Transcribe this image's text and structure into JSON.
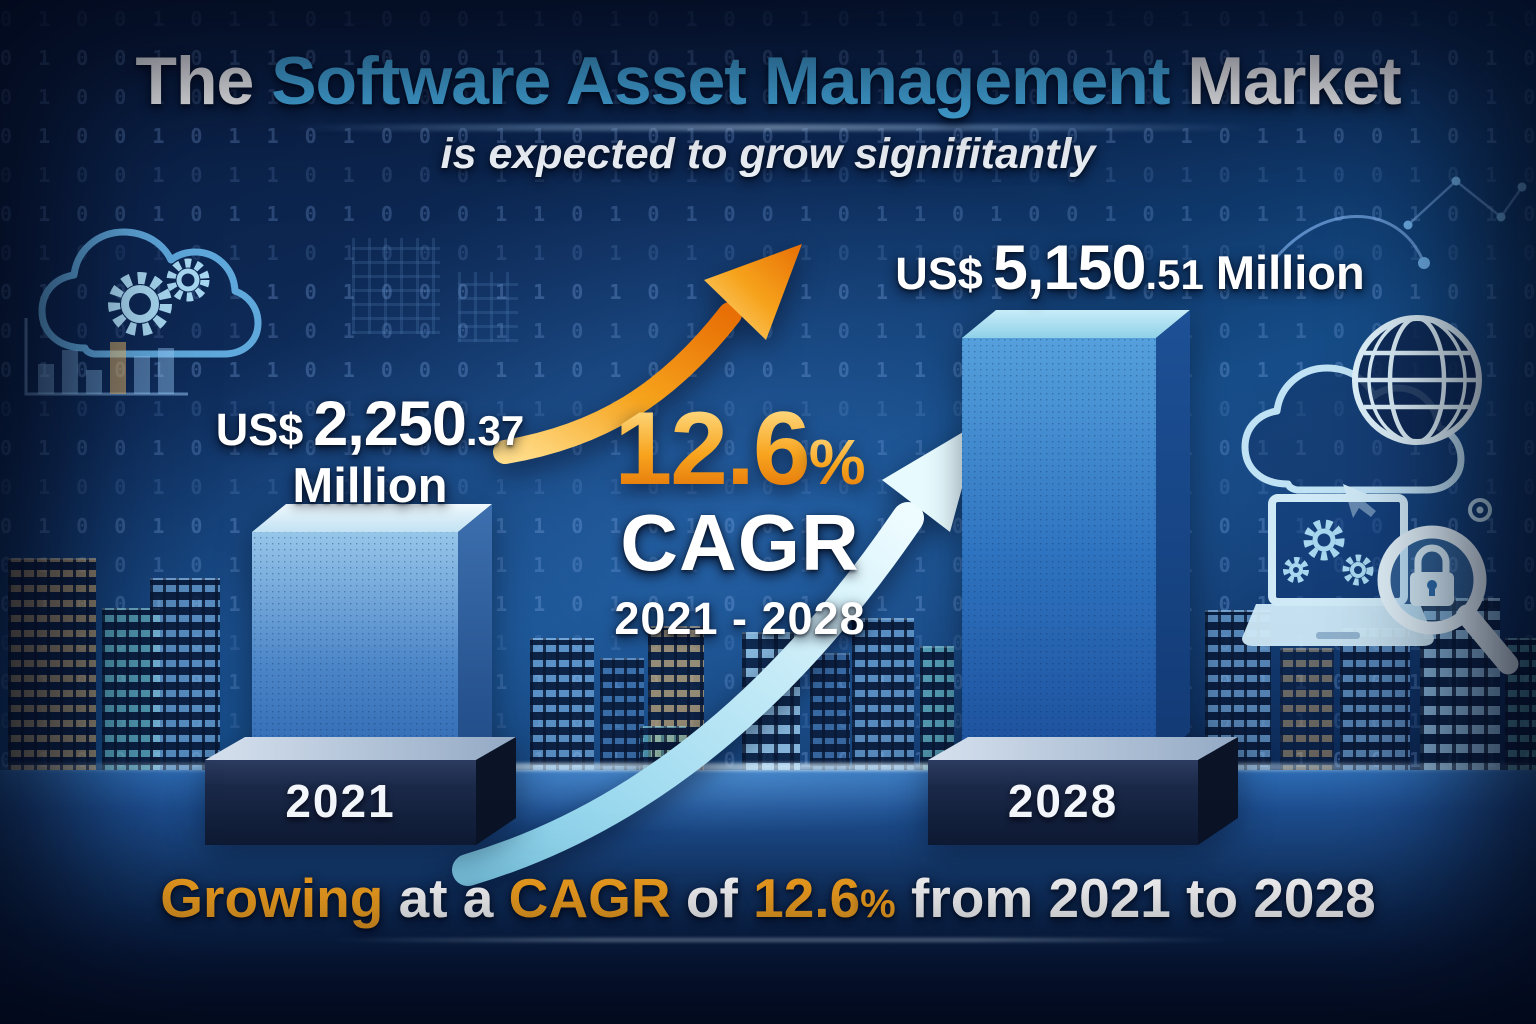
{
  "title": {
    "part1": "The ",
    "highlight": "Software Asset Management",
    "part2": " Market"
  },
  "subtitle": "is expected to grow signifitantly",
  "bars": {
    "left": {
      "currency": "US$",
      "amount": "2,250",
      "decimal": ".37",
      "unit": "Million",
      "year": "2021"
    },
    "right": {
      "currency": "US$",
      "amount": "5,150",
      "decimal": ".51",
      "unit": "Million",
      "year": "2028"
    }
  },
  "cagr": {
    "percent": "12.6",
    "percent_sign": "%",
    "label": "CAGR",
    "range": "2021 - 2028"
  },
  "footer": {
    "f1": "Growing",
    "f2": " at a ",
    "f3": "CAGR",
    "f4": " of ",
    "f5": "12.6",
    "f6": "%",
    "f7": " from 2021 to 2028"
  },
  "colors": {
    "title_highlight": "#49b3ea",
    "accent_orange": "#f8a41e",
    "bar_blue_light": "#97c6ea",
    "bar_blue_dark": "#1c4f9b",
    "background_navy": "#0c2a58",
    "arrow_cyan": "#dff7fd"
  },
  "icons": [
    "cloud-gears-icon",
    "mini-bar-chart-icon",
    "cloud-globe-icon",
    "network-nodes-icon",
    "laptop-gears-icon",
    "magnifier-icon",
    "cursor-icon"
  ],
  "decor": {
    "binary_row": "0 1 0 0 1 0 1 1 0 1 0 0 0 1 1 0 1 0 1 0 0 1 0 1 1 0 1 0 0 1 0 1 0 1 1 0 0 1 0 1 0 0 1 1 0 1 0 1 0 0 1 0 1 1 0 0 1 0 1 0 1 0 1 1 0 1 0 0 1 0 1 0 0 1 1 0 1 0 1 0 0 1 0 1 1 0 1 0 0 1 0 1 0 1"
  },
  "chart_data": {
    "type": "bar",
    "categories": [
      "2021",
      "2028"
    ],
    "values": [
      2250.37,
      5150.51
    ],
    "unit": "US$ Million",
    "title": "The Software Asset Management Market",
    "subtitle": "is expected to grow signifitantly",
    "annotations": {
      "cagr_percent": 12.6,
      "period": "2021 - 2028",
      "summary": "Growing at a CAGR of 12.6% from 2021 to 2028"
    },
    "legend": "none",
    "xlabel": "",
    "ylabel": ""
  }
}
